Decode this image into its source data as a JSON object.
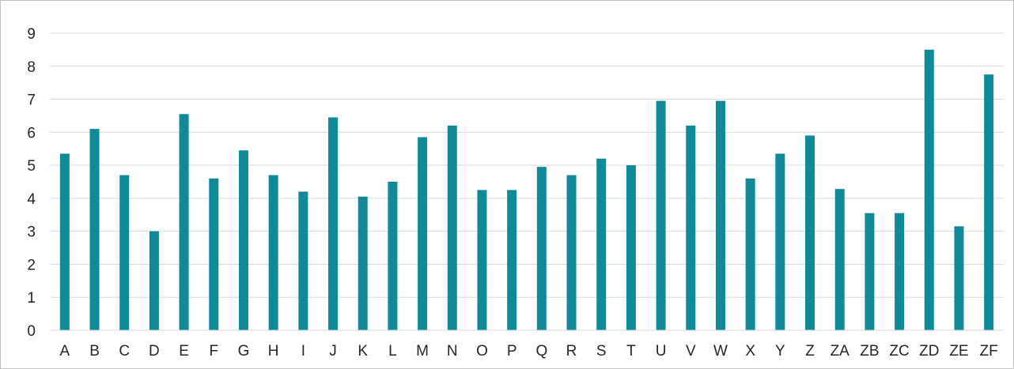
{
  "chart_data": {
    "type": "bar",
    "title": "",
    "xlabel": "",
    "ylabel": "",
    "ylim": [
      0,
      9
    ],
    "yticks": [
      0,
      1,
      2,
      3,
      4,
      5,
      6,
      7,
      8,
      9
    ],
    "grid": true,
    "legend": "none",
    "bar_color": "#0f8a96",
    "grid_color": "#d9d9d9",
    "categories": [
      "A",
      "B",
      "C",
      "D",
      "E",
      "F",
      "G",
      "H",
      "I",
      "J",
      "K",
      "L",
      "M",
      "N",
      "O",
      "P",
      "Q",
      "R",
      "S",
      "T",
      "U",
      "V",
      "W",
      "X",
      "Y",
      "Z",
      "ZA",
      "ZB",
      "ZC",
      "ZD",
      "ZE",
      "ZF"
    ],
    "values": [
      5.35,
      6.1,
      4.7,
      3.0,
      6.55,
      4.6,
      5.45,
      4.7,
      4.2,
      6.45,
      4.05,
      4.5,
      5.85,
      6.2,
      4.25,
      4.25,
      4.95,
      4.7,
      5.2,
      5.0,
      6.95,
      6.2,
      6.95,
      4.6,
      5.35,
      5.9,
      4.28,
      3.55,
      3.55,
      8.5,
      3.15,
      7.75
    ]
  }
}
